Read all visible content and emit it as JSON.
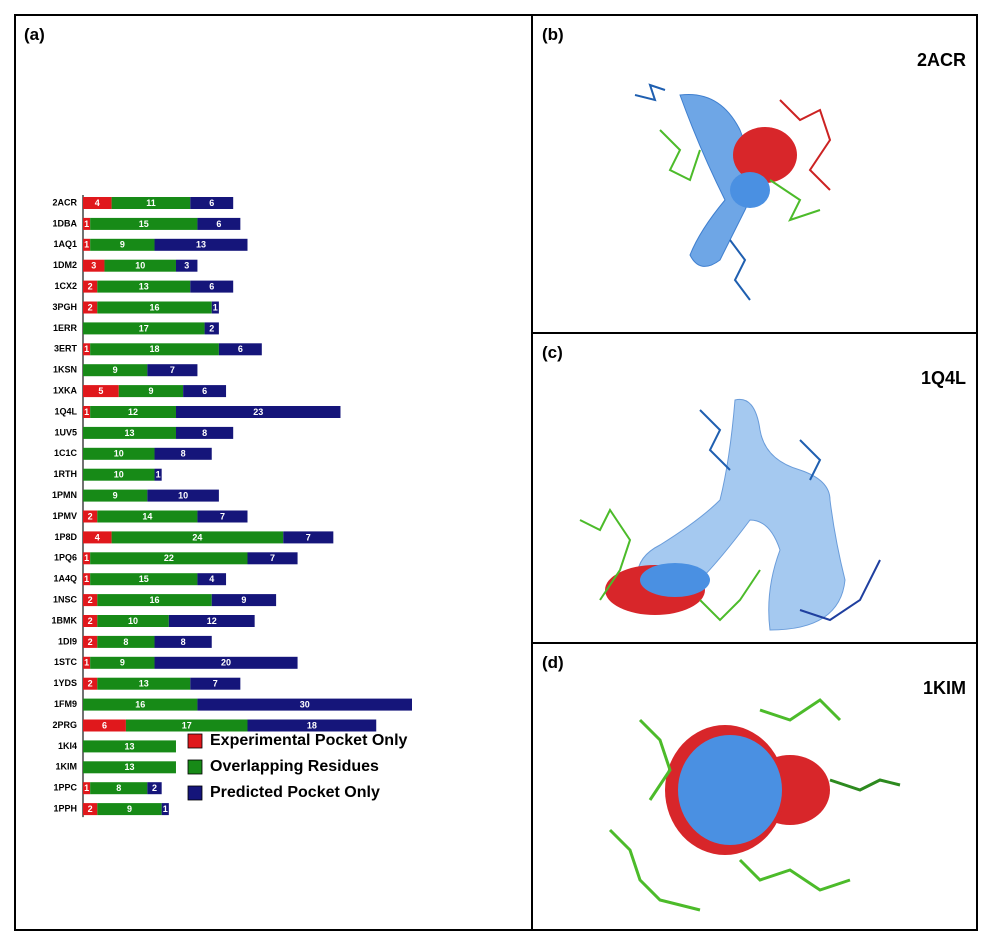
{
  "chart_data": {
    "type": "stacked-barh",
    "panel_label": "(a)",
    "categories": [
      "2ACR",
      "1DBA",
      "1AQ1",
      "1DM2",
      "1CX2",
      "3PGH",
      "1ERR",
      "3ERT",
      "1KSN",
      "1XKA",
      "1Q4L",
      "1UV5",
      "1C1C",
      "1RTH",
      "1PMN",
      "1PMV",
      "1P8D",
      "1PQ6",
      "1A4Q",
      "1NSC",
      "1BMK",
      "1DI9",
      "1STC",
      "1YDS",
      "1FM9",
      "2PRG",
      "1KI4",
      "1KIM",
      "1PPC",
      "1PPH"
    ],
    "series": [
      {
        "name": "Experimental Pocket Only",
        "color": "#e0181c",
        "values": [
          4,
          1,
          1,
          3,
          2,
          2,
          null,
          1,
          null,
          5,
          1,
          null,
          null,
          null,
          null,
          2,
          4,
          1,
          1,
          2,
          2,
          2,
          1,
          2,
          null,
          6,
          null,
          null,
          1,
          2
        ]
      },
      {
        "name": "Overlapping Residues",
        "color": "#178a17",
        "values": [
          11,
          15,
          9,
          10,
          13,
          16,
          17,
          18,
          9,
          9,
          12,
          13,
          10,
          10,
          9,
          14,
          24,
          22,
          15,
          16,
          10,
          8,
          9,
          13,
          16,
          17,
          13,
          13,
          8,
          9
        ]
      },
      {
        "name": "Predicted Pocket Only",
        "color": "#15157a",
        "values": [
          6,
          6,
          13,
          3,
          6,
          1,
          2,
          6,
          7,
          6,
          23,
          8,
          8,
          1,
          10,
          7,
          7,
          7,
          4,
          9,
          12,
          8,
          20,
          7,
          30,
          18,
          null,
          null,
          2,
          1
        ]
      }
    ],
    "legend": "lower-right"
  },
  "panels": [
    {
      "label": "(b)",
      "title": "2ACR"
    },
    {
      "label": "(c)",
      "title": "1Q4L"
    },
    {
      "label": "(d)",
      "title": "1KIM"
    }
  ]
}
